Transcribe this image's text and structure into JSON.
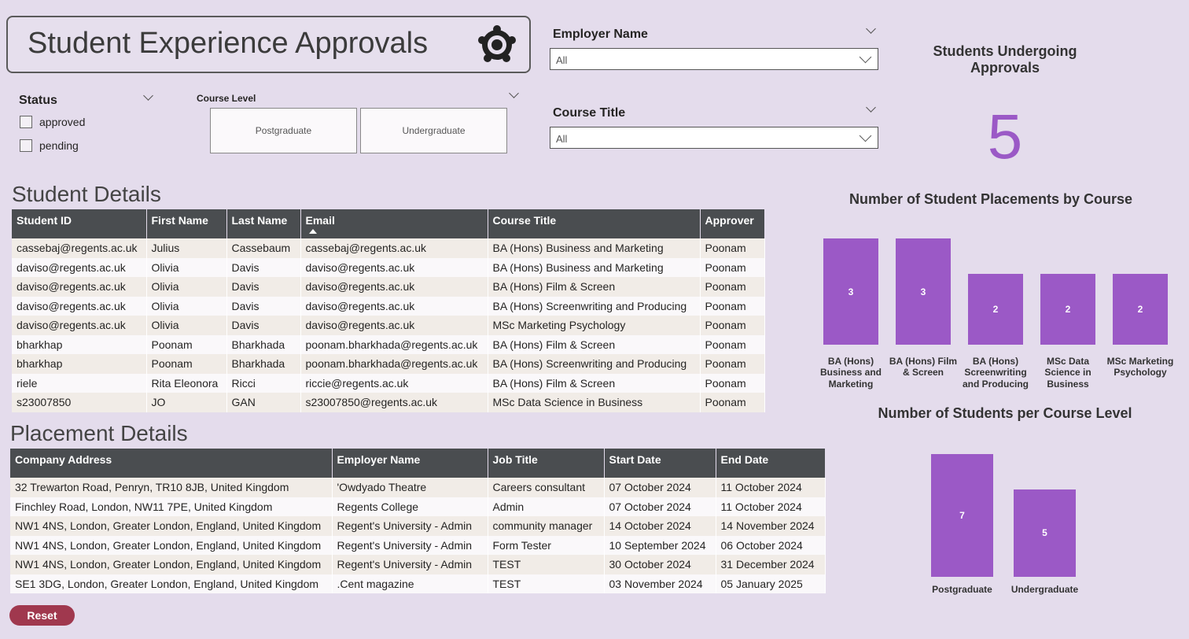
{
  "header": {
    "title": "Student Experience Approvals"
  },
  "filters": {
    "status": {
      "label": "Status",
      "options": [
        "approved",
        "pending"
      ]
    },
    "course_level": {
      "label": "Course Level",
      "options": [
        "Postgraduate",
        "Undergraduate"
      ]
    },
    "employer_name": {
      "label": "Employer Name",
      "value": "All"
    },
    "course_title": {
      "label": "Course Title",
      "value": "All"
    }
  },
  "kpi": {
    "label": "Students Undergoing Approvals",
    "value": 5
  },
  "student_details": {
    "title": "Student Details",
    "columns": [
      "Student ID",
      "First Name",
      "Last Name",
      "Email",
      "Course Title",
      "Approver"
    ],
    "rows": [
      [
        "cassebaj@regents.ac.uk",
        "Julius",
        "Cassebaum",
        "cassebaj@regents.ac.uk",
        "BA (Hons) Business and Marketing",
        "Poonam"
      ],
      [
        "daviso@regents.ac.uk",
        "Olivia",
        "Davis",
        "daviso@regents.ac.uk",
        "BA (Hons) Business and Marketing",
        "Poonam"
      ],
      [
        "daviso@regents.ac.uk",
        "Olivia",
        "Davis",
        "daviso@regents.ac.uk",
        "BA (Hons) Film & Screen",
        "Poonam"
      ],
      [
        "daviso@regents.ac.uk",
        "Olivia",
        "Davis",
        "daviso@regents.ac.uk",
        "BA (Hons) Screenwriting and Producing",
        "Poonam"
      ],
      [
        "daviso@regents.ac.uk",
        "Olivia",
        "Davis",
        "daviso@regents.ac.uk",
        "MSc Marketing Psychology",
        "Poonam"
      ],
      [
        "bharkhap",
        "Poonam",
        "Bharkhada",
        "poonam.bharkhada@regents.ac.uk",
        "BA (Hons) Film & Screen",
        "Poonam"
      ],
      [
        "bharkhap",
        "Poonam",
        "Bharkhada",
        "poonam.bharkhada@regents.ac.uk",
        "BA (Hons) Screenwriting and Producing",
        "Poonam"
      ],
      [
        "riele",
        "Rita Eleonora",
        "Ricci",
        "riccie@regents.ac.uk",
        "BA (Hons) Film & Screen",
        "Poonam"
      ],
      [
        "s23007850",
        "JO",
        "GAN",
        "s23007850@regents.ac.uk",
        "MSc Data Science in Business",
        "Poonam"
      ]
    ]
  },
  "placement_details": {
    "title": "Placement Details",
    "columns": [
      "Company Address",
      "Employer Name",
      "Job Title",
      "Start Date",
      "End Date"
    ],
    "rows": [
      [
        "32 Trewarton Road, Penryn, TR10 8JB, United Kingdom",
        "'Owdyado Theatre",
        "Careers consultant",
        "07 October 2024",
        "11 October 2024"
      ],
      [
        "Finchley Road, London, NW11 7PE, United Kingdom",
        "Regents College",
        "Admin",
        "07 October 2024",
        "11 October 2024"
      ],
      [
        "NW1 4NS, London, Greater London, England, United Kingdom",
        "Regent's University - Admin",
        "community manager",
        "14 October 2024",
        "14 November 2024"
      ],
      [
        "NW1 4NS, London, Greater London, England, United Kingdom",
        "Regent's University - Admin",
        "Form Tester",
        "10 September 2024",
        "06 October 2024"
      ],
      [
        "NW1 4NS, London, Greater London, England, United Kingdom",
        "Regent's University - Admin",
        "TEST",
        "30 October 2024",
        "31 December 2024"
      ],
      [
        "SE1 3DG, London, Greater London, England, United Kingdom",
        ".Cent magazine",
        "TEST",
        "03 November 2024",
        "05 January 2025"
      ]
    ]
  },
  "placements_chart": {
    "type": "bar",
    "title": "Number of Student Placements by Course",
    "categories": [
      "BA (Hons) Business and Marketing",
      "BA (Hons) Film & Screen",
      "BA (Hons) Screenwriting and Producing",
      "MSc Data Science in Business",
      "MSc Marketing Psychology"
    ],
    "values": [
      3,
      3,
      2,
      2,
      2
    ],
    "color": "#9b59c6"
  },
  "level_chart": {
    "type": "bar",
    "title": "Number of Students per Course Level",
    "categories": [
      "Postgraduate",
      "Undergraduate"
    ],
    "values": [
      7,
      5
    ],
    "color": "#9b59c6"
  },
  "reset": "Reset"
}
